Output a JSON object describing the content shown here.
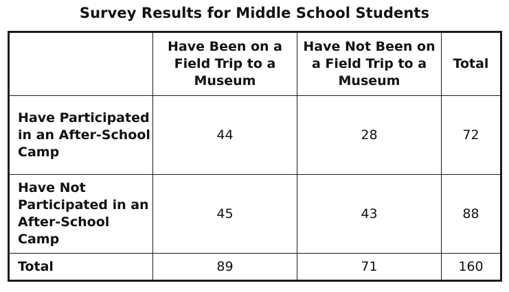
{
  "title": "Survey Results for Middle School Students",
  "table": {
    "column_headers": [
      "",
      "Have Been on a Field Trip to a Museum",
      "Have Not Been on a Field Trip to a Museum",
      "Total"
    ],
    "rows": [
      {
        "label": "Have Participated in an After-School Camp",
        "cells": [
          "44",
          "28",
          "72"
        ]
      },
      {
        "label": "Have Not Participated in an After-School Camp",
        "cells": [
          "45",
          "43",
          "88"
        ]
      },
      {
        "label": "Total",
        "cells": [
          "89",
          "71",
          "160"
        ]
      }
    ]
  }
}
